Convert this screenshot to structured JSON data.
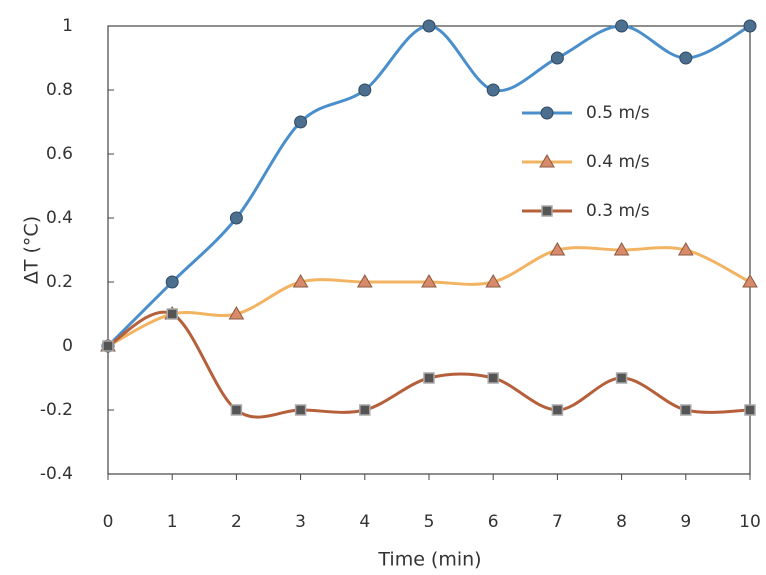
{
  "chart_data": {
    "type": "line",
    "x_label": "Time (min)",
    "y_label": "ΔT (°C)",
    "x": [
      0,
      1,
      2,
      3,
      4,
      5,
      6,
      7,
      8,
      9,
      10
    ],
    "series": [
      {
        "name": "0.5 m/s",
        "color": "#4a8fcc",
        "marker": "circle",
        "values": [
          0,
          0.2,
          0.4,
          0.7,
          0.8,
          1,
          0.8,
          0.9,
          1,
          0.9,
          1
        ]
      },
      {
        "name": "0.4 m/s",
        "color": "#f2b462",
        "marker": "triangle",
        "values": [
          0,
          0.1,
          0.1,
          0.2,
          0.2,
          0.2,
          0.2,
          0.3,
          0.3,
          0.3,
          0.2
        ]
      },
      {
        "name": "0.3 m/s",
        "color": "#b5603a",
        "marker": "square",
        "values": [
          0,
          0.1,
          -0.2,
          -0.2,
          -0.2,
          -0.1,
          -0.1,
          -0.2,
          -0.1,
          -0.2,
          -0.2
        ]
      }
    ],
    "xlim": [
      0,
      10
    ],
    "xticks": [
      0,
      1,
      2,
      3,
      4,
      5,
      6,
      7,
      8,
      9,
      10
    ],
    "ylim": [
      -0.4,
      1
    ],
    "yticks": [
      -0.4,
      -0.2,
      0,
      0.2,
      0.4,
      0.6,
      0.8,
      1
    ],
    "legend": "upper right",
    "grid": false
  }
}
